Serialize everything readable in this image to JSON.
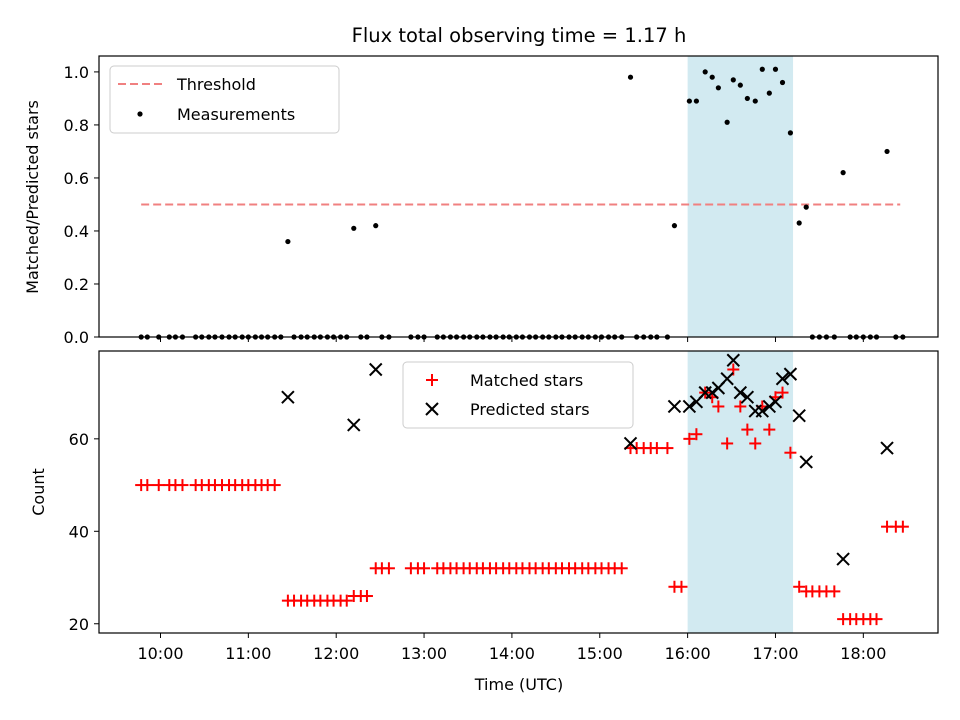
{
  "figure": {
    "title": "Flux total observing time = 1.17 h",
    "xlabel": "Time (UTC)",
    "shaded_color": "#add8e6",
    "shaded_range_hours": [
      16.0,
      17.2
    ]
  },
  "chart_data": [
    {
      "type": "scatter",
      "name": "top",
      "ylabel": "Matched/Predicted stars",
      "xlim_hours": [
        9.3,
        18.85
      ],
      "ylim": [
        0,
        1.06
      ],
      "x_ticks": [
        "10:00",
        "11:00",
        "12:00",
        "13:00",
        "14:00",
        "15:00",
        "16:00",
        "17:00",
        "18:00"
      ],
      "y_ticks": [
        "0.0",
        "0.2",
        "0.4",
        "0.6",
        "0.8",
        "1.0"
      ],
      "threshold": {
        "name": "Threshold",
        "value": 0.5,
        "x_range_hours": [
          9.78,
          18.42
        ],
        "color": "#f08080"
      },
      "legend": {
        "placement": "upper-left",
        "entries": [
          "Threshold",
          "Measurements"
        ]
      },
      "measurements": {
        "name": "Measurements",
        "color": "#000000",
        "zero_x_hours": [
          9.78,
          9.85,
          9.98,
          10.1,
          10.17,
          10.25,
          10.4,
          10.47,
          10.55,
          10.62,
          10.7,
          10.78,
          10.85,
          10.93,
          11.0,
          11.08,
          11.15,
          11.22,
          11.3,
          11.37,
          11.52,
          11.6,
          11.67,
          11.75,
          11.82,
          11.9,
          11.97,
          12.05,
          12.12,
          12.28,
          12.35,
          12.52,
          12.6,
          12.85,
          12.93,
          13.0,
          13.15,
          13.22,
          13.3,
          13.37,
          13.45,
          13.52,
          13.6,
          13.67,
          13.75,
          13.82,
          13.9,
          13.97,
          14.05,
          14.12,
          14.2,
          14.27,
          14.35,
          14.42,
          14.5,
          14.57,
          14.65,
          14.72,
          14.8,
          14.87,
          14.95,
          15.02,
          15.1,
          15.17,
          15.25,
          15.42,
          15.5,
          15.58,
          15.65,
          15.77,
          17.42,
          17.5,
          17.58,
          17.67,
          17.85,
          17.92,
          18.0,
          18.08,
          18.15,
          18.37,
          18.45
        ],
        "points": [
          {
            "x": 11.45,
            "y": 0.36
          },
          {
            "x": 12.2,
            "y": 0.41
          },
          {
            "x": 12.45,
            "y": 0.42
          },
          {
            "x": 15.35,
            "y": 0.98
          },
          {
            "x": 15.85,
            "y": 0.42
          },
          {
            "x": 16.02,
            "y": 0.89
          },
          {
            "x": 16.1,
            "y": 0.89
          },
          {
            "x": 16.2,
            "y": 1.0
          },
          {
            "x": 16.28,
            "y": 0.98
          },
          {
            "x": 16.35,
            "y": 0.94
          },
          {
            "x": 16.45,
            "y": 0.81
          },
          {
            "x": 16.52,
            "y": 0.97
          },
          {
            "x": 16.6,
            "y": 0.95
          },
          {
            "x": 16.68,
            "y": 0.9
          },
          {
            "x": 16.77,
            "y": 0.89
          },
          {
            "x": 16.85,
            "y": 1.01
          },
          {
            "x": 16.93,
            "y": 0.92
          },
          {
            "x": 17.0,
            "y": 1.01
          },
          {
            "x": 17.08,
            "y": 0.96
          },
          {
            "x": 17.17,
            "y": 0.77
          },
          {
            "x": 17.27,
            "y": 0.43
          },
          {
            "x": 17.35,
            "y": 0.49
          },
          {
            "x": 17.77,
            "y": 0.62
          },
          {
            "x": 18.27,
            "y": 0.7
          }
        ]
      }
    },
    {
      "type": "scatter",
      "name": "bottom",
      "ylabel": "Count",
      "xlim_hours": [
        9.3,
        18.85
      ],
      "ylim": [
        18,
        79
      ],
      "x_ticks": [
        "10:00",
        "11:00",
        "12:00",
        "13:00",
        "14:00",
        "15:00",
        "16:00",
        "17:00",
        "18:00"
      ],
      "y_ticks": [
        "20",
        "40",
        "60"
      ],
      "legend": {
        "placement": "upper-center",
        "entries": [
          "Matched stars",
          "Predicted stars"
        ]
      },
      "matched": {
        "name": "Matched stars",
        "color": "#ff0000",
        "points": [
          {
            "x": 9.78,
            "y": 50
          },
          {
            "x": 9.85,
            "y": 50
          },
          {
            "x": 9.98,
            "y": 50
          },
          {
            "x": 10.1,
            "y": 50
          },
          {
            "x": 10.17,
            "y": 50
          },
          {
            "x": 10.25,
            "y": 50
          },
          {
            "x": 10.4,
            "y": 50
          },
          {
            "x": 10.47,
            "y": 50
          },
          {
            "x": 10.55,
            "y": 50
          },
          {
            "x": 10.62,
            "y": 50
          },
          {
            "x": 10.7,
            "y": 50
          },
          {
            "x": 10.78,
            "y": 50
          },
          {
            "x": 10.85,
            "y": 50
          },
          {
            "x": 10.93,
            "y": 50
          },
          {
            "x": 11.0,
            "y": 50
          },
          {
            "x": 11.08,
            "y": 50
          },
          {
            "x": 11.15,
            "y": 50
          },
          {
            "x": 11.22,
            "y": 50
          },
          {
            "x": 11.3,
            "y": 50
          },
          {
            "x": 11.45,
            "y": 25
          },
          {
            "x": 11.52,
            "y": 25
          },
          {
            "x": 11.6,
            "y": 25
          },
          {
            "x": 11.67,
            "y": 25
          },
          {
            "x": 11.75,
            "y": 25
          },
          {
            "x": 11.82,
            "y": 25
          },
          {
            "x": 11.9,
            "y": 25
          },
          {
            "x": 11.97,
            "y": 25
          },
          {
            "x": 12.05,
            "y": 25
          },
          {
            "x": 12.12,
            "y": 25
          },
          {
            "x": 12.2,
            "y": 26
          },
          {
            "x": 12.28,
            "y": 26
          },
          {
            "x": 12.35,
            "y": 26
          },
          {
            "x": 12.45,
            "y": 32
          },
          {
            "x": 12.52,
            "y": 32
          },
          {
            "x": 12.6,
            "y": 32
          },
          {
            "x": 12.85,
            "y": 32
          },
          {
            "x": 12.93,
            "y": 32
          },
          {
            "x": 13.0,
            "y": 32
          },
          {
            "x": 13.15,
            "y": 32
          },
          {
            "x": 13.22,
            "y": 32
          },
          {
            "x": 13.3,
            "y": 32
          },
          {
            "x": 13.37,
            "y": 32
          },
          {
            "x": 13.45,
            "y": 32
          },
          {
            "x": 13.52,
            "y": 32
          },
          {
            "x": 13.6,
            "y": 32
          },
          {
            "x": 13.67,
            "y": 32
          },
          {
            "x": 13.75,
            "y": 32
          },
          {
            "x": 13.82,
            "y": 32
          },
          {
            "x": 13.9,
            "y": 32
          },
          {
            "x": 13.97,
            "y": 32
          },
          {
            "x": 14.05,
            "y": 32
          },
          {
            "x": 14.12,
            "y": 32
          },
          {
            "x": 14.2,
            "y": 32
          },
          {
            "x": 14.27,
            "y": 32
          },
          {
            "x": 14.35,
            "y": 32
          },
          {
            "x": 14.42,
            "y": 32
          },
          {
            "x": 14.5,
            "y": 32
          },
          {
            "x": 14.57,
            "y": 32
          },
          {
            "x": 14.65,
            "y": 32
          },
          {
            "x": 14.72,
            "y": 32
          },
          {
            "x": 14.8,
            "y": 32
          },
          {
            "x": 14.87,
            "y": 32
          },
          {
            "x": 14.95,
            "y": 32
          },
          {
            "x": 15.02,
            "y": 32
          },
          {
            "x": 15.1,
            "y": 32
          },
          {
            "x": 15.17,
            "y": 32
          },
          {
            "x": 15.25,
            "y": 32
          },
          {
            "x": 15.35,
            "y": 58
          },
          {
            "x": 15.42,
            "y": 58
          },
          {
            "x": 15.5,
            "y": 58
          },
          {
            "x": 15.58,
            "y": 58
          },
          {
            "x": 15.65,
            "y": 58
          },
          {
            "x": 15.77,
            "y": 58
          },
          {
            "x": 15.85,
            "y": 28
          },
          {
            "x": 15.93,
            "y": 28
          },
          {
            "x": 16.02,
            "y": 60
          },
          {
            "x": 16.1,
            "y": 61
          },
          {
            "x": 16.2,
            "y": 70
          },
          {
            "x": 16.28,
            "y": 69
          },
          {
            "x": 16.35,
            "y": 67
          },
          {
            "x": 16.45,
            "y": 59
          },
          {
            "x": 16.52,
            "y": 75
          },
          {
            "x": 16.6,
            "y": 67
          },
          {
            "x": 16.68,
            "y": 62
          },
          {
            "x": 16.77,
            "y": 59
          },
          {
            "x": 16.85,
            "y": 67
          },
          {
            "x": 16.93,
            "y": 62
          },
          {
            "x": 17.0,
            "y": 69
          },
          {
            "x": 17.08,
            "y": 70
          },
          {
            "x": 17.17,
            "y": 57
          },
          {
            "x": 17.27,
            "y": 28
          },
          {
            "x": 17.35,
            "y": 27
          },
          {
            "x": 17.42,
            "y": 27
          },
          {
            "x": 17.5,
            "y": 27
          },
          {
            "x": 17.58,
            "y": 27
          },
          {
            "x": 17.67,
            "y": 27
          },
          {
            "x": 17.77,
            "y": 21
          },
          {
            "x": 17.85,
            "y": 21
          },
          {
            "x": 17.92,
            "y": 21
          },
          {
            "x": 18.0,
            "y": 21
          },
          {
            "x": 18.08,
            "y": 21
          },
          {
            "x": 18.15,
            "y": 21
          },
          {
            "x": 18.27,
            "y": 41
          },
          {
            "x": 18.37,
            "y": 41
          },
          {
            "x": 18.45,
            "y": 41
          }
        ]
      },
      "predicted": {
        "name": "Predicted stars",
        "color": "#000000",
        "points": [
          {
            "x": 11.45,
            "y": 69
          },
          {
            "x": 12.2,
            "y": 63
          },
          {
            "x": 12.45,
            "y": 75
          },
          {
            "x": 15.35,
            "y": 59
          },
          {
            "x": 15.85,
            "y": 67
          },
          {
            "x": 16.02,
            "y": 67
          },
          {
            "x": 16.1,
            "y": 68
          },
          {
            "x": 16.2,
            "y": 70
          },
          {
            "x": 16.28,
            "y": 70
          },
          {
            "x": 16.35,
            "y": 71
          },
          {
            "x": 16.45,
            "y": 73
          },
          {
            "x": 16.52,
            "y": 77
          },
          {
            "x": 16.6,
            "y": 70
          },
          {
            "x": 16.68,
            "y": 69
          },
          {
            "x": 16.77,
            "y": 66
          },
          {
            "x": 16.85,
            "y": 66
          },
          {
            "x": 16.93,
            "y": 67
          },
          {
            "x": 17.0,
            "y": 68
          },
          {
            "x": 17.08,
            "y": 73
          },
          {
            "x": 17.17,
            "y": 74
          },
          {
            "x": 17.27,
            "y": 65
          },
          {
            "x": 17.35,
            "y": 55
          },
          {
            "x": 17.77,
            "y": 34
          },
          {
            "x": 18.27,
            "y": 58
          }
        ]
      }
    }
  ]
}
